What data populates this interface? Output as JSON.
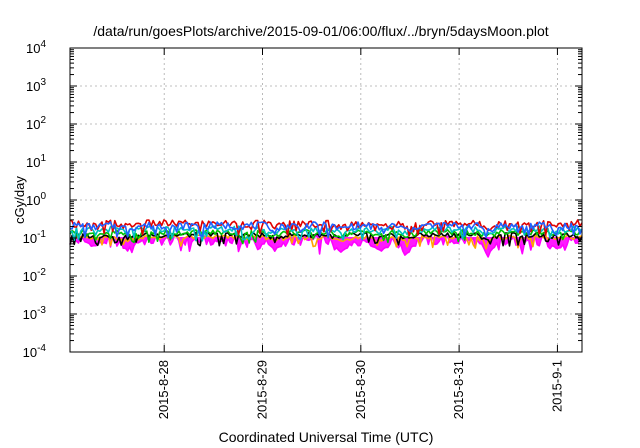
{
  "chart_data": {
    "type": "line",
    "title": "/data/run/goesPlots/archive/2015-09-01/06:00/flux/../bryn/5daysMoon.plot",
    "xlabel": "Coordinated Universal Time (UTC)",
    "ylabel": "cGy/day",
    "y_scale": "log",
    "ylim": [
      0.0001,
      10000
    ],
    "xlim": [
      "2015-08-27 01:00",
      "2015-09-01 06:00"
    ],
    "grid": true,
    "x_ticks": [
      {
        "x": "2015-08-28",
        "label": "2015-8-28"
      },
      {
        "x": "2015-08-29",
        "label": "2015-8-29"
      },
      {
        "x": "2015-08-30",
        "label": "2015-8-30"
      },
      {
        "x": "2015-08-31",
        "label": "2015-8-31"
      },
      {
        "x": "2015-09-01",
        "label": "2015-9-1"
      }
    ],
    "y_ticks": [
      {
        "value": 0.0001,
        "base": "10",
        "exp": "-4"
      },
      {
        "value": 0.001,
        "base": "10",
        "exp": "-3"
      },
      {
        "value": 0.01,
        "base": "10",
        "exp": "-2"
      },
      {
        "value": 0.1,
        "base": "10",
        "exp": "-1"
      },
      {
        "value": 1,
        "base": "10",
        "exp": "0"
      },
      {
        "value": 10,
        "base": "10",
        "exp": "1"
      },
      {
        "value": 100,
        "base": "10",
        "exp": "2"
      },
      {
        "value": 1000,
        "base": "10",
        "exp": "3"
      },
      {
        "value": 10000,
        "base": "10",
        "exp": "4"
      }
    ],
    "series": [
      {
        "color": "#ff00ff",
        "level": 0.085,
        "variability": 0.45,
        "fill": true
      },
      {
        "color": "#ffa500",
        "level": 0.105,
        "variability": 0.22,
        "fill": false
      },
      {
        "color": "#000000",
        "level": 0.12,
        "variability": 0.22,
        "fill": false
      },
      {
        "color": "#00c000",
        "level": 0.14,
        "variability": 0.25,
        "fill": false
      },
      {
        "color": "#00c0c0",
        "level": 0.17,
        "variability": 0.28,
        "fill": false
      },
      {
        "color": "#e00000",
        "level": 0.24,
        "variability": 0.32,
        "fill": false
      },
      {
        "color": "#2060ff",
        "level": 0.21,
        "variability": 0.34,
        "fill": false
      }
    ],
    "dips": [
      {
        "x": "2015-08-27 07:00",
        "value": 0.06
      },
      {
        "x": "2015-08-27 15:00",
        "value": 0.045
      },
      {
        "x": "2015-08-29 03:00",
        "value": 0.045
      },
      {
        "x": "2015-08-29 19:00",
        "value": 0.04
      },
      {
        "x": "2015-08-30 05:00",
        "value": 0.045
      },
      {
        "x": "2015-08-30 11:00",
        "value": 0.035
      },
      {
        "x": "2015-08-31 07:00",
        "value": 0.03
      },
      {
        "x": "2015-09-01 00:00",
        "value": 0.05
      }
    ]
  }
}
